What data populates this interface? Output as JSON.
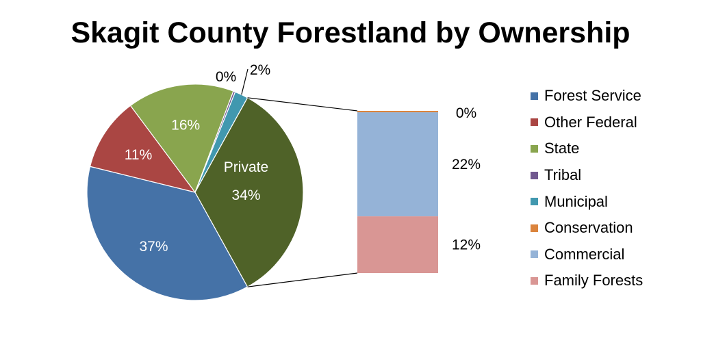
{
  "chart_data": {
    "type": "pie",
    "subtype": "bar-of-pie",
    "title": "Skagit County Forestland by Ownership",
    "pie": {
      "slices": [
        {
          "name": "Forest Service",
          "value": 37,
          "label": "37%",
          "color": "#4572A7"
        },
        {
          "name": "Other Federal",
          "value": 11,
          "label": "11%",
          "color": "#AA4643"
        },
        {
          "name": "State",
          "value": 16,
          "label": "16%",
          "color": "#89A54E"
        },
        {
          "name": "Tribal",
          "value": 0.3,
          "label": "0%",
          "color": "#71588F"
        },
        {
          "name": "Municipal",
          "value": 2,
          "label": "2%",
          "color": "#4198AF"
        },
        {
          "name": "Private",
          "value": 34,
          "label": "34%",
          "color": "#4F6228"
        }
      ],
      "private_label": "Private"
    },
    "bar": {
      "segments": [
        {
          "name": "Family Forests",
          "value": 12,
          "label": "12%",
          "color": "#D99694"
        },
        {
          "name": "Commercial",
          "value": 22,
          "label": "22%",
          "color": "#95B3D7"
        },
        {
          "name": "Conservation",
          "value": 0.3,
          "label": "0%",
          "color": "#DB843D"
        }
      ]
    },
    "legend": [
      {
        "label": "Forest Service",
        "color": "#4572A7"
      },
      {
        "label": "Other Federal",
        "color": "#AA4643"
      },
      {
        "label": "State",
        "color": "#89A54E"
      },
      {
        "label": "Tribal",
        "color": "#71588F"
      },
      {
        "label": "Municipal",
        "color": "#4198AF"
      },
      {
        "label": "Conservation",
        "color": "#DB843D"
      },
      {
        "label": "Commercial",
        "color": "#95B3D7"
      },
      {
        "label": "Family Forests",
        "color": "#D99694"
      }
    ],
    "legend_position": "right"
  }
}
